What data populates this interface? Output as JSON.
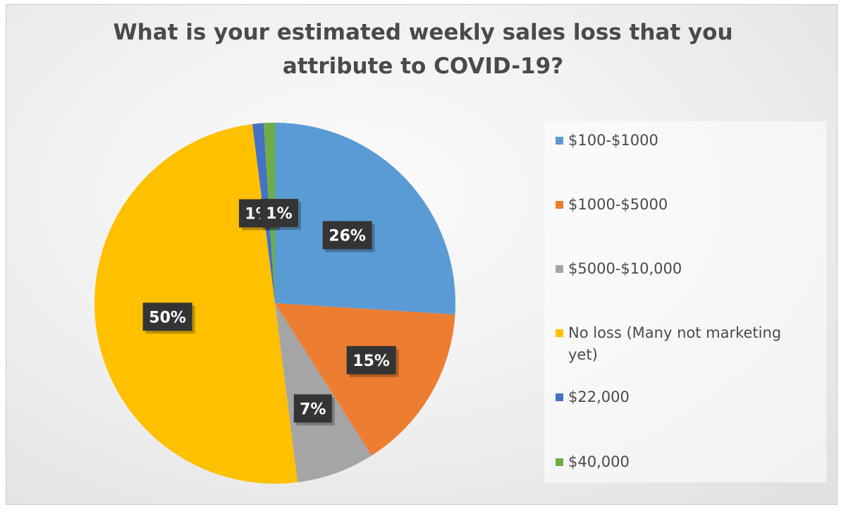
{
  "chart_data": {
    "type": "pie",
    "title_lines": [
      "What is your estimated weekly sales loss that you",
      "attribute to COVID-19?"
    ],
    "legend_position": "right",
    "slices": [
      {
        "name": "$100-$1000",
        "value": 26,
        "label": "26%",
        "color": "#5b9bd5"
      },
      {
        "name": "$1000-$5000",
        "value": 15,
        "label": "15%",
        "color": "#ed7d31"
      },
      {
        "name": "$5000-$10,000",
        "value": 7,
        "label": "7%",
        "color": "#a5a5a5"
      },
      {
        "name": "No loss (Many not marketing yet)",
        "value": 50,
        "label": "50%",
        "color": "#ffc000"
      },
      {
        "name": "$22,000",
        "value": 1,
        "label": "1%",
        "color": "#4472c4"
      },
      {
        "name": "$40,000",
        "value": 1,
        "label": "1%",
        "color": "#70ad47"
      }
    ],
    "legend": [
      {
        "lines": [
          "$100-$1000"
        ]
      },
      {
        "lines": [
          "$1000-$5000"
        ]
      },
      {
        "lines": [
          "$5000-$10,000"
        ]
      },
      {
        "lines": [
          "No loss (Many not marketing",
          "yet)"
        ]
      },
      {
        "lines": [
          "$22,000"
        ]
      },
      {
        "lines": [
          "$40,000"
        ]
      }
    ]
  }
}
